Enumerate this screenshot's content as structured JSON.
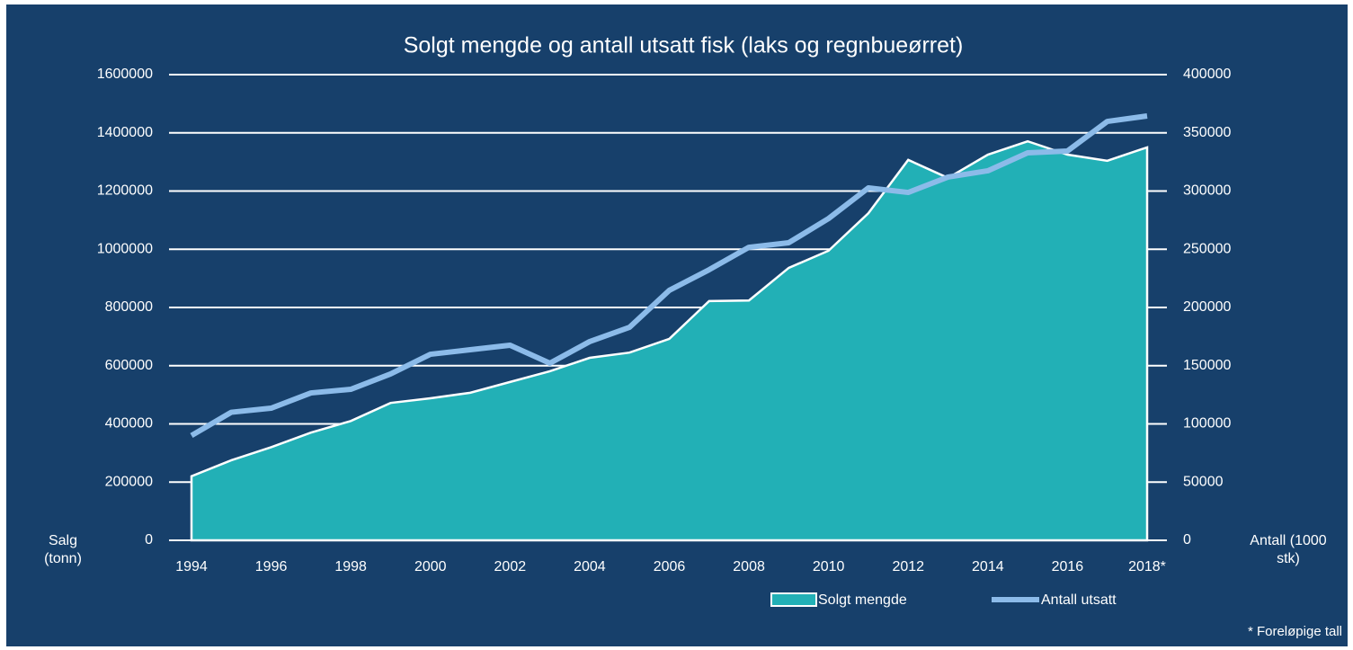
{
  "chart_data": {
    "type": "area-line",
    "title": "Solgt mengde og antall utsatt fisk (laks og regnbueørret)",
    "y_label": "Salg (tonn)",
    "y2_label": "Antall (1000 stk)",
    "note": "* Foreløpige tall",
    "categories": [
      "1994",
      null,
      "1996",
      null,
      "1998",
      null,
      "2000",
      null,
      "2002",
      null,
      "2004",
      null,
      "2006",
      null,
      "2008",
      null,
      "2010",
      null,
      "2012",
      null,
      "2014",
      null,
      "2016",
      null,
      "2018*"
    ],
    "series": [
      {
        "name": "Solgt mengde",
        "type": "area",
        "axis": "y",
        "color": "#22b0b6",
        "values": [
          220000,
          275000,
          320000,
          370000,
          410000,
          472000,
          488000,
          507000,
          544000,
          581000,
          627000,
          645000,
          692000,
          822000,
          824000,
          936000,
          995000,
          1124000,
          1307000,
          1245000,
          1325000,
          1371000,
          1325000,
          1304000,
          1350000
        ]
      },
      {
        "name": "Antall utsatt",
        "type": "line",
        "axis": "y2",
        "color": "#8cbbe9",
        "values": [
          90000,
          110000,
          113500,
          126600,
          129700,
          142900,
          159800,
          163700,
          167600,
          152100,
          170700,
          183000,
          214700,
          232400,
          251700,
          255600,
          276400,
          302700,
          298800,
          312000,
          317400,
          332800,
          334400,
          359800,
          364500
        ]
      }
    ],
    "ylim": [
      0,
      1600000
    ],
    "yticks": [
      0,
      200000,
      400000,
      600000,
      800000,
      1000000,
      1200000,
      1400000,
      1600000
    ],
    "y2lim": [
      0,
      400000
    ],
    "y2ticks": [
      0,
      50000,
      100000,
      150000,
      200000,
      250000,
      300000,
      350000,
      400000
    ],
    "grid": true,
    "legend": "bottom"
  }
}
